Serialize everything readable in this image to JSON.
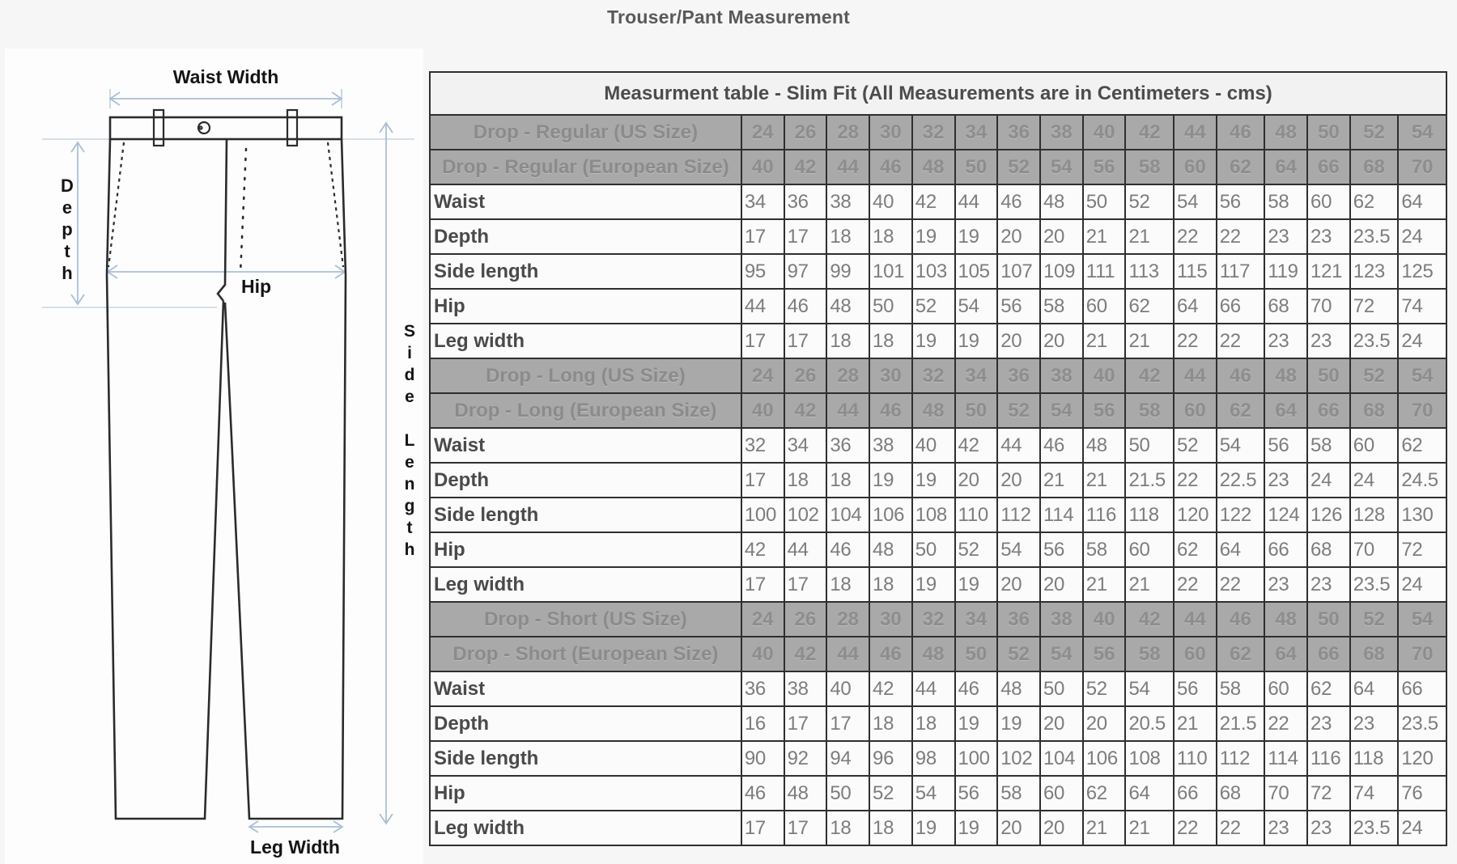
{
  "page": {
    "title": "Trouser/Pant Measurement"
  },
  "diagram": {
    "labels": {
      "waist_width": "Waist Width",
      "depth": "Depth",
      "hip": "Hip",
      "side_length": "Side Length",
      "leg_width": "Leg Width"
    }
  },
  "table": {
    "title": "Measurment table - Slim Fit (All Measurements are in Centimeters - cms)",
    "us_sizes": [
      24,
      26,
      28,
      30,
      32,
      34,
      36,
      38,
      40,
      42,
      44,
      46,
      48,
      50,
      52,
      54
    ],
    "eu_sizes": [
      40,
      42,
      44,
      46,
      48,
      50,
      52,
      54,
      56,
      58,
      60,
      62,
      64,
      66,
      68,
      70
    ],
    "sections": [
      {
        "us_label": "Drop - Regular (US Size)",
        "eu_label": "Drop - Regular (European Size)",
        "rows": [
          {
            "label": "Waist",
            "values": [
              34,
              36,
              38,
              40,
              42,
              44,
              46,
              48,
              50,
              52,
              54,
              56,
              58,
              60,
              62,
              64
            ]
          },
          {
            "label": "Depth",
            "values": [
              17,
              17,
              18,
              18,
              19,
              19,
              20,
              20,
              21,
              21,
              22,
              22,
              23,
              23,
              23.5,
              24
            ]
          },
          {
            "label": "Side length",
            "values": [
              95,
              97,
              99,
              101,
              103,
              105,
              107,
              109,
              111,
              113,
              115,
              117,
              119,
              121,
              123,
              125
            ]
          },
          {
            "label": "Hip",
            "values": [
              44,
              46,
              48,
              50,
              52,
              54,
              56,
              58,
              60,
              62,
              64,
              66,
              68,
              70,
              72,
              74
            ]
          },
          {
            "label": "Leg width",
            "values": [
              17,
              17,
              18,
              18,
              19,
              19,
              20,
              20,
              21,
              21,
              22,
              22,
              23,
              23,
              23.5,
              24
            ]
          }
        ]
      },
      {
        "us_label": "Drop - Long (US Size)",
        "eu_label": "Drop - Long (European Size)",
        "rows": [
          {
            "label": "Waist",
            "values": [
              32,
              34,
              36,
              38,
              40,
              42,
              44,
              46,
              48,
              50,
              52,
              54,
              56,
              58,
              60,
              62
            ]
          },
          {
            "label": "Depth",
            "values": [
              17,
              18,
              18,
              19,
              19,
              20,
              20,
              21,
              21,
              21.5,
              22,
              22.5,
              23,
              24,
              24,
              24.5
            ]
          },
          {
            "label": "Side length",
            "values": [
              100,
              102,
              104,
              106,
              108,
              110,
              112,
              114,
              116,
              118,
              120,
              122,
              124,
              126,
              128,
              130
            ]
          },
          {
            "label": "Hip",
            "values": [
              42,
              44,
              46,
              48,
              50,
              52,
              54,
              56,
              58,
              60,
              62,
              64,
              66,
              68,
              70,
              72
            ]
          },
          {
            "label": "Leg width",
            "values": [
              17,
              17,
              18,
              18,
              19,
              19,
              20,
              20,
              21,
              21,
              22,
              22,
              23,
              23,
              23.5,
              24
            ]
          }
        ]
      },
      {
        "us_label": "Drop - Short (US Size)",
        "eu_label": "Drop - Short (European Size)",
        "rows": [
          {
            "label": "Waist",
            "values": [
              36,
              38,
              40,
              42,
              44,
              46,
              48,
              50,
              52,
              54,
              56,
              58,
              60,
              62,
              64,
              66
            ]
          },
          {
            "label": "Depth",
            "values": [
              16,
              17,
              17,
              18,
              18,
              19,
              19,
              20,
              20,
              20.5,
              21,
              21.5,
              22,
              23,
              23,
              23.5
            ]
          },
          {
            "label": "Side length",
            "values": [
              90,
              92,
              94,
              96,
              98,
              100,
              102,
              104,
              106,
              108,
              110,
              112,
              114,
              116,
              118,
              120
            ]
          },
          {
            "label": "Hip",
            "values": [
              46,
              48,
              50,
              52,
              54,
              56,
              58,
              60,
              62,
              64,
              66,
              68,
              70,
              72,
              74,
              76
            ]
          },
          {
            "label": "Leg width",
            "values": [
              17,
              17,
              18,
              18,
              19,
              19,
              20,
              20,
              21,
              21,
              22,
              22,
              23,
              23,
              23.5,
              24
            ]
          }
        ]
      }
    ]
  },
  "colors": {
    "page_bg": "#f6f6f6",
    "panel_bg": "#fdfdfd",
    "title_text": "#58595b",
    "header_gray_bg": "#a9a9a9",
    "header_gray_text": "#8d8d8d",
    "table_border": "#2f2f2f",
    "value_text": "#7d7d7d",
    "label_text": "#4a4a4a",
    "arrow_blue": "#a9bfd6",
    "trouser_line": "#2b2b2b"
  }
}
